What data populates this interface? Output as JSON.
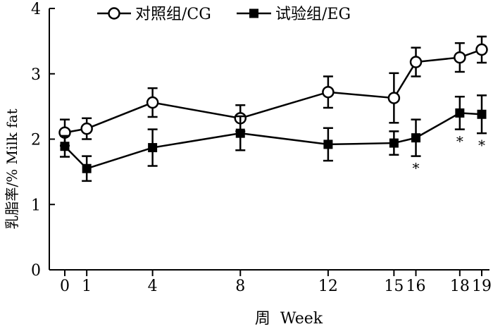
{
  "chart_data": {
    "type": "line",
    "xlabel": "周  Week",
    "ylabel": "乳脂率/%  Milk fat",
    "x": [
      0,
      1,
      4,
      8,
      12,
      15,
      16,
      18,
      19
    ],
    "x_ticks": [
      0,
      1,
      4,
      8,
      12,
      15,
      16,
      18,
      19
    ],
    "ylim": [
      0,
      4
    ],
    "y_ticks": [
      0,
      1,
      2,
      3,
      4
    ],
    "grid": false,
    "legend_position": "top",
    "series": [
      {
        "name": "对照组/CG",
        "marker": "open-circle",
        "color": "#000000",
        "values": [
          2.1,
          2.16,
          2.56,
          2.32,
          2.72,
          2.63,
          3.18,
          3.25,
          3.37
        ],
        "error": [
          0.2,
          0.16,
          0.22,
          0.2,
          0.24,
          0.38,
          0.22,
          0.22,
          0.2
        ]
      },
      {
        "name": "试验组/EG",
        "marker": "filled-square",
        "color": "#000000",
        "values": [
          1.89,
          1.55,
          1.87,
          2.09,
          1.92,
          1.94,
          2.02,
          2.4,
          2.38
        ],
        "error": [
          0.16,
          0.19,
          0.28,
          0.26,
          0.25,
          0.18,
          0.28,
          0.25,
          0.29
        ]
      }
    ],
    "annotations": [
      {
        "x": 16,
        "text": "*"
      },
      {
        "x": 18,
        "text": "*"
      },
      {
        "x": 19,
        "text": "*"
      }
    ]
  }
}
